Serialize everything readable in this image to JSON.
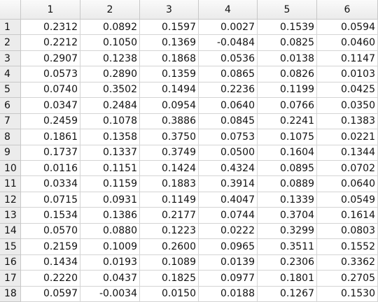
{
  "table": {
    "columns": [
      "1",
      "2",
      "3",
      "4",
      "5",
      "6"
    ],
    "rows": [
      {
        "label": "1",
        "cells": [
          "0.2312",
          "0.0892",
          "0.1597",
          "0.0027",
          "0.1539",
          "0.0594"
        ]
      },
      {
        "label": "2",
        "cells": [
          "0.2212",
          "0.1050",
          "0.1369",
          "-0.0484",
          "0.0825",
          "0.0460"
        ]
      },
      {
        "label": "3",
        "cells": [
          "0.2907",
          "0.1238",
          "0.1868",
          "0.0536",
          "0.0138",
          "0.1147"
        ]
      },
      {
        "label": "4",
        "cells": [
          "0.0573",
          "0.2890",
          "0.1359",
          "0.0865",
          "0.0826",
          "0.0103"
        ]
      },
      {
        "label": "5",
        "cells": [
          "0.0740",
          "0.3502",
          "0.1494",
          "0.2236",
          "0.1199",
          "0.0425"
        ]
      },
      {
        "label": "6",
        "cells": [
          "0.0347",
          "0.2484",
          "0.0954",
          "0.0640",
          "0.0766",
          "0.0350"
        ]
      },
      {
        "label": "7",
        "cells": [
          "0.2459",
          "0.1078",
          "0.3886",
          "0.0845",
          "0.2241",
          "0.1383"
        ]
      },
      {
        "label": "8",
        "cells": [
          "0.1861",
          "0.1358",
          "0.3750",
          "0.0753",
          "0.1075",
          "0.0221"
        ]
      },
      {
        "label": "9",
        "cells": [
          "0.1737",
          "0.1337",
          "0.3749",
          "0.0500",
          "0.1604",
          "0.1344"
        ]
      },
      {
        "label": "10",
        "cells": [
          "0.0116",
          "0.1151",
          "0.1424",
          "0.4324",
          "0.0895",
          "0.0702"
        ]
      },
      {
        "label": "11",
        "cells": [
          "0.0334",
          "0.1159",
          "0.1883",
          "0.3914",
          "0.0889",
          "0.0640"
        ]
      },
      {
        "label": "12",
        "cells": [
          "0.0715",
          "0.0931",
          "0.1149",
          "0.4047",
          "0.1339",
          "0.0549"
        ]
      },
      {
        "label": "13",
        "cells": [
          "0.1534",
          "0.1386",
          "0.2177",
          "0.0744",
          "0.3704",
          "0.1614"
        ]
      },
      {
        "label": "14",
        "cells": [
          "0.0570",
          "0.0880",
          "0.1223",
          "0.0222",
          "0.3299",
          "0.0803"
        ]
      },
      {
        "label": "15",
        "cells": [
          "0.2159",
          "0.1009",
          "0.2600",
          "0.0965",
          "0.3511",
          "0.1552"
        ]
      },
      {
        "label": "16",
        "cells": [
          "0.1434",
          "0.0193",
          "0.1089",
          "0.0139",
          "0.2306",
          "0.3362"
        ]
      },
      {
        "label": "17",
        "cells": [
          "0.2220",
          "0.0437",
          "0.1825",
          "0.0977",
          "0.1801",
          "0.2705"
        ]
      },
      {
        "label": "18",
        "cells": [
          "0.0597",
          "-0.0034",
          "0.0150",
          "0.0188",
          "0.1267",
          "0.1530"
        ]
      }
    ]
  }
}
